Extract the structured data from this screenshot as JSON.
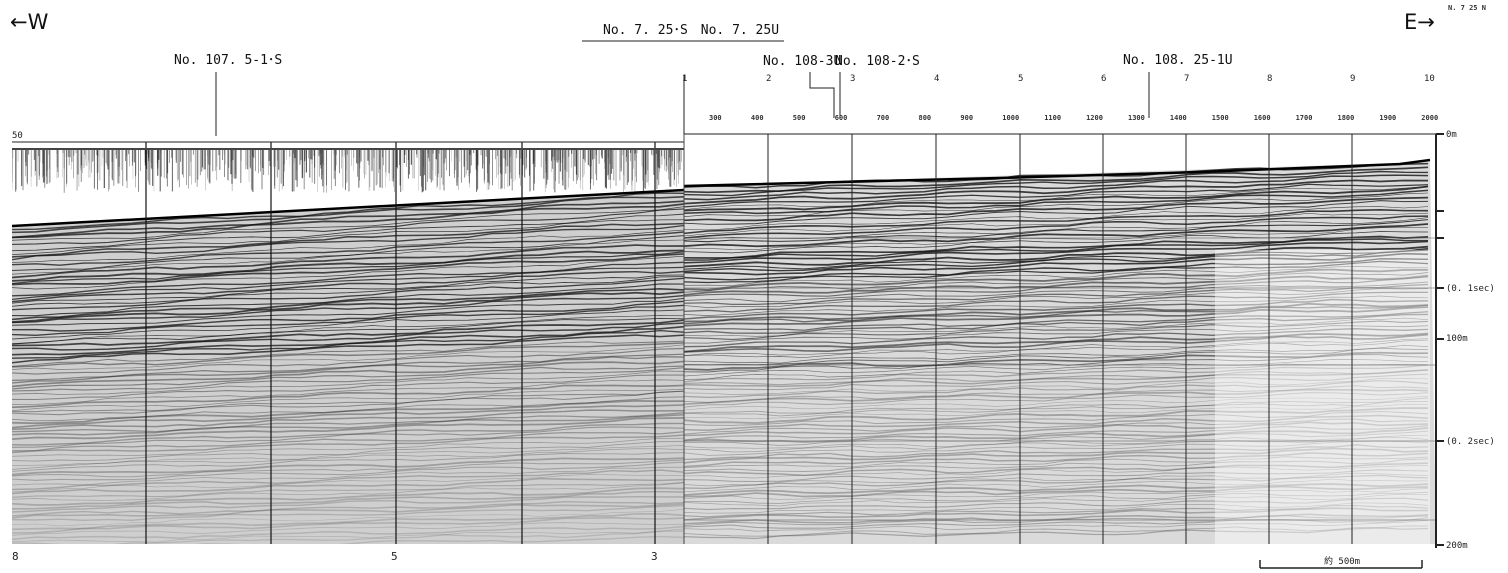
{
  "directions": {
    "west": "←W",
    "east": "E→",
    "corner_fragment": "N. 7 25 N"
  },
  "lines": {
    "top_center": "No. 7. 25･S　No. 7. 25U",
    "west_label": "No. 107. 5-1･S",
    "mid_label_a": "No. 108-3U",
    "mid_label_b": "No. 108-2･S",
    "east_label": "No. 108. 25-1U"
  },
  "fix_numbers_east": [
    "1",
    "2",
    "3",
    "4",
    "5",
    "6",
    "7",
    "8",
    "9",
    "10"
  ],
  "distance_ticks_east": [
    "300",
    "400",
    "500",
    "600",
    "700",
    "800",
    "900",
    "1000",
    "1100",
    "1200",
    "1300",
    "1400",
    "1500",
    "1600",
    "1700",
    "1800",
    "1900",
    "2000"
  ],
  "fix_numbers_west_bottom": [
    "8",
    "5",
    "3"
  ],
  "west_top_mark": "50",
  "depth_scale": {
    "labels": [
      "0m",
      "(0. 1sec)",
      "100m",
      "(0. 2sec)",
      "200m"
    ]
  },
  "scale_bar": {
    "label": "約 500m"
  }
}
